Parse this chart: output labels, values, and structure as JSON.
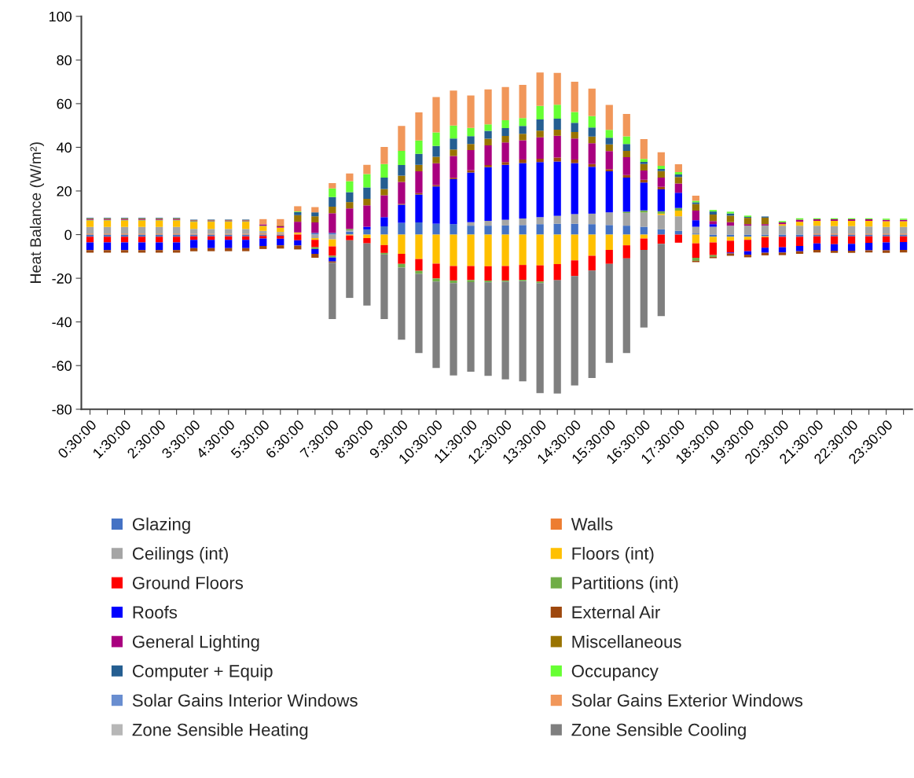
{
  "chart_data": {
    "type": "bar",
    "stacked": true,
    "ylabel": "Heat Balance (W/m²)",
    "categories": [
      "0:30:00",
      null,
      "1:30:00",
      null,
      "2:30:00",
      null,
      "3:30:00",
      null,
      "4:30:00",
      null,
      "5:30:00",
      null,
      "6:30:00",
      null,
      "7:30:00",
      null,
      "8:30:00",
      null,
      "9:30:00",
      null,
      "10:30:00",
      null,
      "11:30:00",
      null,
      "12:30:00",
      null,
      "13:30:00",
      null,
      "14:30:00",
      null,
      "15:30:00",
      null,
      "16:30:00",
      null,
      "17:30:00",
      null,
      "18:30:00",
      null,
      "19:30:00",
      null,
      "20:30:00",
      null,
      "21:30:00",
      null,
      "22:30:00",
      null,
      "23:30:00",
      null
    ],
    "ylim": [
      -80,
      100
    ],
    "yticks": [
      -80,
      -60,
      -40,
      -20,
      0,
      20,
      40,
      60,
      80,
      100
    ],
    "grid": false,
    "legend": "bottom",
    "series": [
      {
        "name": "Glazing",
        "color": "#4472c4",
        "values": [
          -1,
          -1,
          -1,
          -1,
          -1,
          -1,
          -0.8,
          -0.8,
          -0.8,
          -0.8,
          -0.6,
          -0.5,
          null,
          0.8,
          0.8,
          1.4,
          2.4,
          3.8,
          5.4,
          5.6,
          5,
          4.8,
          4.1,
          4.1,
          4.2,
          4.4,
          4.8,
          5,
          5,
          4.8,
          4.4,
          4.1,
          3.6,
          2.4,
          1.7,
          0.5,
          -1,
          -1,
          -1,
          -0.8,
          -1,
          -1,
          -0.8,
          -0.8,
          -0.8,
          -0.8,
          -0.8,
          -0.8
        ]
      },
      {
        "name": "Walls",
        "color": "#ed7d31",
        "values": [
          0.5,
          0.5,
          0.5,
          0.5,
          0.5,
          0.5,
          0.4,
          0.4,
          0.4,
          0.4,
          0.5,
          0.4,
          0.4,
          0,
          0,
          0,
          0,
          0,
          0,
          0,
          0,
          0,
          0,
          0,
          0,
          0,
          0,
          0,
          0,
          0,
          0,
          0,
          0,
          0,
          0,
          0,
          0,
          0,
          0,
          0,
          0,
          0,
          0.5,
          0.5,
          0.5,
          0.5,
          0.5,
          0.5
        ]
      },
      {
        "name": "Ceilings (int)",
        "color": "#a5a5a5",
        "values": [
          3,
          3,
          3,
          3,
          3,
          3,
          2.2,
          2.2,
          2.2,
          2.2,
          1.2,
          0.8,
          null,
          -1.6,
          -2.2,
          0.6,
          0,
          0,
          0,
          0,
          0,
          0,
          1.6,
          2.2,
          2.6,
          3,
          3.2,
          3.6,
          4.4,
          4.8,
          5.8,
          5.8,
          6.5,
          6.6,
          6.7,
          3.1,
          3.6,
          4.1,
          4.1,
          4.2,
          4.1,
          4.1,
          3.6,
          3.4,
          3.4,
          3.2,
          3,
          3
        ]
      },
      {
        "name": "Floors (int)",
        "color": "#ffc000",
        "values": [
          3,
          3,
          3,
          3,
          3,
          3,
          3.3,
          3.3,
          3.3,
          3.3,
          2.2,
          2,
          0.6,
          -0.8,
          -3.2,
          -0.4,
          -1.6,
          -4.8,
          -8.8,
          -11.2,
          -13.3,
          -14.4,
          -14.4,
          -14.5,
          -14.4,
          -13.9,
          -14.1,
          -13.5,
          -11.8,
          -9.7,
          -7,
          -4.9,
          -1.8,
          0.6,
          2.6,
          -4,
          -2.6,
          -1.8,
          -1.4,
          -0.4,
          0.7,
          1.8,
          2.2,
          2.4,
          2.4,
          2.6,
          2.6,
          2.6
        ]
      },
      {
        "name": "Ground Floors",
        "color": "#ff0000",
        "values": [
          -2.6,
          -2.6,
          -2.6,
          -2.6,
          -2.6,
          -2.6,
          -1.6,
          -1.6,
          -1.6,
          -1.6,
          -1.2,
          -1.4,
          -2.6,
          -3.4,
          -4.3,
          -2.2,
          -2.4,
          -3.6,
          -4.6,
          -5.4,
          -6.8,
          -6.6,
          -6.4,
          -6.6,
          -6.6,
          -6.8,
          -7.4,
          -7.4,
          -7.2,
          -6.8,
          -6.4,
          -6,
          -5.2,
          -4.2,
          -3.7,
          -6.6,
          -5.8,
          -5.4,
          -5.2,
          -4.8,
          -4.8,
          -4.2,
          -3.2,
          -3.6,
          -3.4,
          -3,
          -2.8,
          -2.6
        ]
      },
      {
        "name": "Partitions (int)",
        "color": "#70ad47",
        "values": [
          0.3,
          0.3,
          0.3,
          0.3,
          0.3,
          0.3,
          0.3,
          0.3,
          0.3,
          0.3,
          0.2,
          0,
          null,
          -0.8,
          -0.8,
          0.6,
          0,
          -0.7,
          -1.7,
          -1.4,
          -1.4,
          -1.2,
          -1,
          -0.8,
          -0.6,
          -0.6,
          -0.7,
          0,
          0,
          0,
          0,
          0.6,
          1,
          1.1,
          1.2,
          -1.4,
          -0.8,
          0,
          0,
          0,
          0,
          0,
          0,
          0,
          0,
          0,
          0,
          0
        ]
      },
      {
        "name": "Roofs",
        "color": "#0000ff",
        "values": [
          -3.5,
          -3.5,
          -3.5,
          -3.5,
          -3.5,
          -3.5,
          -3.8,
          -3.8,
          -3.8,
          -3.8,
          -3.4,
          -3,
          -2.4,
          -2.2,
          -1.8,
          0,
          1.2,
          4.2,
          8.3,
          12.8,
          17.1,
          20.6,
          22.8,
          24.6,
          25.2,
          25.4,
          25.2,
          24.9,
          23.4,
          21.5,
          18.8,
          15.6,
          12.8,
          10,
          7,
          3,
          1.2,
          -0.4,
          -1.6,
          -2.3,
          -2.4,
          -2.4,
          -3,
          -3,
          -3.2,
          -3.4,
          -3.6,
          -3.6
        ]
      },
      {
        "name": "External Air",
        "color": "#9e480e",
        "values": [
          -1.2,
          -1.2,
          -1.2,
          -1.2,
          -1.2,
          -1.2,
          -1.4,
          -1.4,
          -1.4,
          -1.4,
          -1.4,
          -1.5,
          -1.8,
          -1.8,
          -0.6,
          0,
          0,
          0,
          0.4,
          0.6,
          0.6,
          0.6,
          1,
          1,
          1.2,
          1.6,
          1.6,
          1.8,
          1.6,
          1.2,
          1,
          1.2,
          1.2,
          1.2,
          0,
          -0.6,
          -0.6,
          -1.1,
          -1.2,
          -1.2,
          -1.2,
          -1.2,
          -1.2,
          -1,
          -1,
          -1,
          -1.2,
          -1.2
        ]
      },
      {
        "name": "General Lighting",
        "color": "#a9007f",
        "values": [
          0.3,
          0.3,
          0.3,
          0.3,
          0.3,
          0.3,
          0.3,
          0.3,
          0.3,
          0.3,
          0.6,
          0.6,
          4.9,
          4.8,
          9,
          9.4,
          9.8,
          10,
          10,
          10,
          10,
          10,
          9.2,
          9,
          9,
          8.8,
          9.8,
          10,
          9.6,
          9.6,
          8.3,
          8.2,
          4.3,
          4.2,
          4.2,
          4.4,
          1.4,
          1.6,
          0.7,
          0.6,
          0.8,
          1,
          0.7,
          0.7,
          0.7,
          0.7,
          0.7,
          0.7
        ]
      },
      {
        "name": "Miscellaneous",
        "color": "#997300",
        "values": [
          0.3,
          0.3,
          0.3,
          0.3,
          0.3,
          0.3,
          0.2,
          0.2,
          0.2,
          0.2,
          0,
          0.3,
          3,
          2.8,
          3,
          2.9,
          3,
          2.9,
          2.9,
          3,
          3,
          3,
          2.8,
          3,
          3,
          3,
          3,
          2.8,
          3,
          3,
          3,
          2.9,
          2.9,
          3,
          3,
          3,
          3,
          3,
          2.9,
          3,
          0,
          0,
          0,
          0,
          0,
          0,
          0,
          0
        ]
      },
      {
        "name": "Computer + Equip",
        "color": "#255e91",
        "values": [
          0.3,
          0.3,
          0.3,
          0.3,
          0.3,
          0.3,
          0.2,
          0.2,
          0.2,
          0.2,
          0,
          0,
          1.4,
          1.8,
          4.4,
          4.6,
          5.2,
          5.2,
          4.9,
          5,
          4.9,
          5,
          3.6,
          3.6,
          3.6,
          3.6,
          5.2,
          5,
          4.2,
          4.2,
          3.1,
          3.1,
          1,
          1,
          1.2,
          0.8,
          1.4,
          1,
          0.4,
          0.5,
          0,
          0,
          0,
          0,
          0,
          0,
          0,
          0
        ]
      },
      {
        "name": "Occupancy",
        "color": "#66ff33",
        "values": [
          0,
          0,
          0,
          0,
          0,
          0,
          0,
          0,
          0,
          0,
          0,
          0,
          0.3,
          0,
          4,
          5,
          6.1,
          6.2,
          6.5,
          6.1,
          6.2,
          6,
          3.8,
          3,
          3.6,
          3.6,
          6.2,
          6.4,
          5,
          5.2,
          3.6,
          3.5,
          1.4,
          1.4,
          1,
          0.7,
          0.7,
          0.8,
          0.6,
          null,
          0.6,
          0.6,
          0.5,
          0.5,
          0.5,
          0.5,
          0.5,
          0.5
        ]
      },
      {
        "name": "Solar Gains Interior Windows",
        "color": "#698ed0",
        "values": [
          0,
          0,
          0,
          0,
          0,
          0,
          0,
          0,
          0,
          0,
          0,
          0,
          0,
          0,
          0,
          0,
          0,
          0,
          0,
          0,
          0,
          0,
          0,
          0,
          0,
          0,
          0,
          0,
          0,
          0,
          0,
          0,
          0,
          0,
          0,
          0,
          0,
          0,
          0,
          0,
          0,
          0,
          0,
          0,
          0,
          0,
          0,
          0
        ]
      },
      {
        "name": "Solar Gains Exterior Windows",
        "color": "#f1975a",
        "values": [
          0,
          0,
          0,
          0,
          0,
          0,
          0,
          0,
          0,
          0,
          2.4,
          3,
          2.4,
          2.4,
          2.4,
          3.5,
          4.3,
          7.9,
          11.4,
          12.9,
          16.2,
          16,
          14.8,
          16,
          15.2,
          15.2,
          15.3,
          14.6,
          13.8,
          12.6,
          11.4,
          10.3,
          9.1,
          6.2,
          3.6,
          2.3,
          0,
          0,
          0,
          0,
          0,
          0,
          0,
          0,
          0,
          0,
          0,
          0
        ]
      },
      {
        "name": "Zone Sensible Heating",
        "color": "#b7b7b7",
        "values": [
          0,
          0,
          0,
          0,
          0,
          0,
          0,
          0,
          0,
          0,
          0,
          0,
          0,
          0,
          0,
          0,
          0,
          0,
          0,
          0,
          0,
          0,
          0,
          0,
          0,
          0,
          0,
          0,
          0,
          0,
          0,
          0,
          0,
          0,
          0,
          0,
          0,
          0,
          0,
          0,
          0,
          0,
          0,
          0,
          0,
          0,
          0,
          0
        ]
      },
      {
        "name": "Zone Sensible Cooling",
        "color": "#7f7f7f",
        "values": [
          0,
          0,
          0,
          0,
          0,
          0,
          0,
          0,
          0,
          0,
          0,
          0,
          0,
          0,
          -25.8,
          -26.4,
          -28.5,
          -29.6,
          -33,
          -36.3,
          -39.6,
          -42.3,
          -41,
          -42.8,
          -44.7,
          -45.9,
          -50.4,
          -51.9,
          -50.1,
          -49.2,
          -45.4,
          -43.4,
          -35.6,
          -33.1,
          0,
          0,
          0,
          0,
          0,
          0,
          0,
          0,
          0,
          0,
          0,
          0,
          0,
          0
        ]
      }
    ]
  }
}
